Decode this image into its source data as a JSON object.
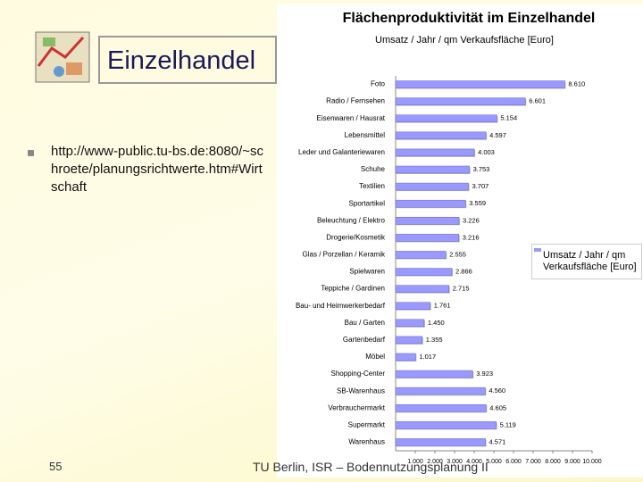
{
  "slide": {
    "heading": "Einzelhandel",
    "bullet": "http://www-public.tu-bs.de:8080/~schroete/planungsrichtwerte.htm#Wirtschaft",
    "footer": "TU Berlin, ISR – Bodennutzungsplanung II",
    "page_number": "55"
  },
  "chart_data": {
    "type": "barh",
    "title": "Flächenproduktivität im Einzelhandel",
    "subtitle": "Umsatz / Jahr / qm Verkaufsfläche [Euro]",
    "categories": [
      "Foto",
      "Radio / Fernsehen",
      "Eisenwaren / Hausrat",
      "Lebensmittel",
      "Leder und Galanteriewaren",
      "Schuhe",
      "Textilien",
      "Sportartikel",
      "Beleuchtung / Elektro",
      "Drogerie/Kosmetik",
      "Glas / Porzellan / Keramik",
      "Spielwaren",
      "Teppiche / Gardinen",
      "Bau- und Heimwerkerbedarf",
      "Bau / Garten",
      "Gartenbedarf",
      "Möbel",
      "Shopping-Center",
      "SB-Warenhaus",
      "Verbrauchermarkt",
      "Supermarkt",
      "Warenhaus"
    ],
    "series": [
      {
        "name": "Umsatz / Jahr / qm Verkaufsfläche [Euro]",
        "color": "#9999ff",
        "values": [
          8610,
          6601,
          5154,
          4597,
          4003,
          3753,
          3707,
          3559,
          3226,
          3216,
          2555,
          2866,
          2715,
          1761,
          1450,
          1355,
          1017,
          3923,
          4560,
          4605,
          5119,
          4571
        ],
        "value_labels": [
          "8.610",
          "6.601",
          "5.154",
          "4.597",
          "4.003",
          "3.753",
          "3.707",
          "3.559",
          "3.226",
          "3.216",
          "2.555",
          "2.866",
          "2.715",
          "1.761",
          "1.450",
          "1.355",
          "1.017",
          "3.923",
          "4.560",
          "4.605",
          "5.119",
          "4.571"
        ]
      }
    ],
    "xlim": [
      0,
      10000
    ],
    "xticks": [
      {
        "value": 1000,
        "label": "1.000"
      },
      {
        "value": 2000,
        "label": "2.000"
      },
      {
        "value": 3000,
        "label": "3.000"
      },
      {
        "value": 4000,
        "label": "4.000"
      },
      {
        "value": 5000,
        "label": "5.000"
      },
      {
        "value": 6000,
        "label": "6.000"
      },
      {
        "value": 7000,
        "label": "7.000"
      },
      {
        "value": 8000,
        "label": "8.000"
      },
      {
        "value": 9000,
        "label": "9.000"
      },
      {
        "value": 10000,
        "label": "10.000"
      }
    ],
    "legend": "right"
  }
}
